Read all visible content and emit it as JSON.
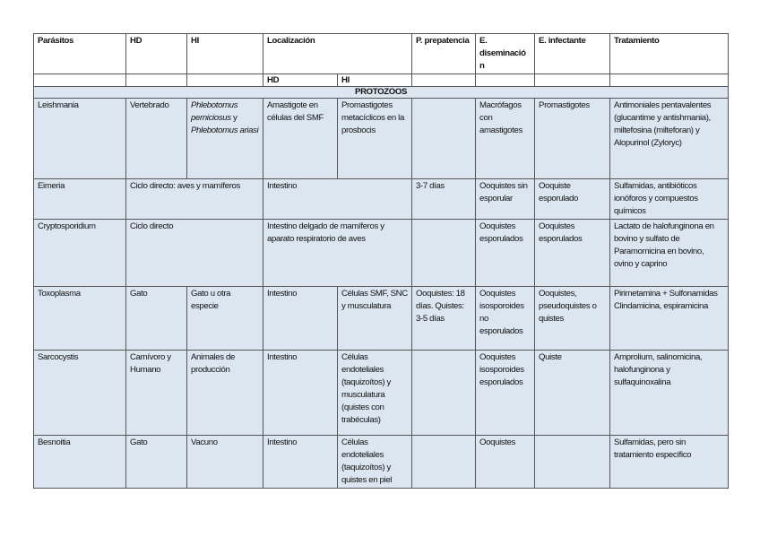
{
  "table": {
    "header": [
      {
        "text": "Parásitos"
      },
      {
        "text": "HD"
      },
      {
        "text": "HI"
      },
      {
        "text": "Localización",
        "span": 2
      },
      {
        "text": "P. prepatencia"
      },
      {
        "text": "E. diseminación"
      },
      {
        "text": "E. infectante"
      },
      {
        "text": "Tratamiento"
      }
    ],
    "subheader": [
      {
        "text": ""
      },
      {
        "text": ""
      },
      {
        "text": ""
      },
      {
        "text": "HD"
      },
      {
        "text": "HI"
      },
      {
        "text": ""
      },
      {
        "text": ""
      },
      {
        "text": ""
      },
      {
        "text": ""
      }
    ],
    "section_label": "PROTOZOOS",
    "rows": [
      {
        "cells": [
          {
            "text": "Leishmania"
          },
          {
            "text": "Vertebrado"
          },
          {
            "parts": [
              {
                "text": "Phlebotomus perniciosus",
                "italic": true
              },
              {
                "text": " y "
              },
              {
                "text": "Phlebotomus ariasi",
                "italic": true
              }
            ]
          },
          {
            "text": "Amastigote en células del SMF"
          },
          {
            "text": "Promastigotes metacíclicos en la prosbocis"
          },
          {
            "text": ""
          },
          {
            "text": "Macrófagos con amastigotes"
          },
          {
            "text": "Promastigotes"
          },
          {
            "text": "Antimoniales pentavalentes (glucantime y antishmania), miltefosina (milteforan) y Alopurinol (Zyloryc)"
          }
        ]
      },
      {
        "cells": [
          {
            "text": "Eimeria"
          },
          {
            "text": "Ciclo directo: aves y mamíferos",
            "span": 2
          },
          {
            "text": "Intestino",
            "span": 2
          },
          {
            "text": "3-7 días"
          },
          {
            "text": "Ooquistes sin esporular"
          },
          {
            "text": "Ooquiste esporulado"
          },
          {
            "text": "Sulfamidas, antibióticos ionóforos y compuestos químicos"
          }
        ]
      },
      {
        "cells": [
          {
            "text": "Cryptosporidium"
          },
          {
            "text": "Ciclo directo",
            "span": 2
          },
          {
            "text": "Intestino delgado de mamíferos y aparato respiratorio de aves",
            "span": 2
          },
          {
            "text": ""
          },
          {
            "text": "Ooquistes esporulados"
          },
          {
            "text": "Ooquistes esporulados"
          },
          {
            "text": "Lactato de halofunginona en bovino y sulfato de Paramomicina en bovino, ovino y caprino"
          }
        ]
      },
      {
        "cells": [
          {
            "text": "Toxoplasma"
          },
          {
            "text": "Gato"
          },
          {
            "text": "Gato u otra especie"
          },
          {
            "text": "Intestino"
          },
          {
            "text": "Células SMF, SNC y musculatura"
          },
          {
            "text": "Ooquistes: 18 días. Quistes: 3-5 días"
          },
          {
            "text": "Ooquistes isosporoides no esporulados"
          },
          {
            "text": "Ooquistes, pseudoquistes o quistes"
          },
          {
            "text": "Pirimetamina + Sulfonamidas Clindamicina, espiramicina"
          }
        ]
      },
      {
        "cells": [
          {
            "text": "Sarcocystis"
          },
          {
            "text": "Carnívoro y Humano"
          },
          {
            "text": "Animales de producción"
          },
          {
            "text": "Intestino"
          },
          {
            "text": "Células endoteliales (taquizoítos) y musculatura (quistes con trabéculas)"
          },
          {
            "text": ""
          },
          {
            "text": "Ooquistes isosporoides esporulados"
          },
          {
            "text": "Quiste"
          },
          {
            "text": "Amprolium, salinomicina, halofunginona y sulfaquinoxalina"
          }
        ]
      },
      {
        "cells": [
          {
            "text": "Besnoitia"
          },
          {
            "text": "Gato"
          },
          {
            "text": "Vacuno"
          },
          {
            "text": "Intestino"
          },
          {
            "text": "Células endoteliales (taquizoítos) y quistes en piel"
          },
          {
            "text": ""
          },
          {
            "text": "Ooquistes"
          },
          {
            "text": ""
          },
          {
            "text": "Sulfamidas, pero sin tratamiento específico"
          }
        ]
      }
    ]
  }
}
